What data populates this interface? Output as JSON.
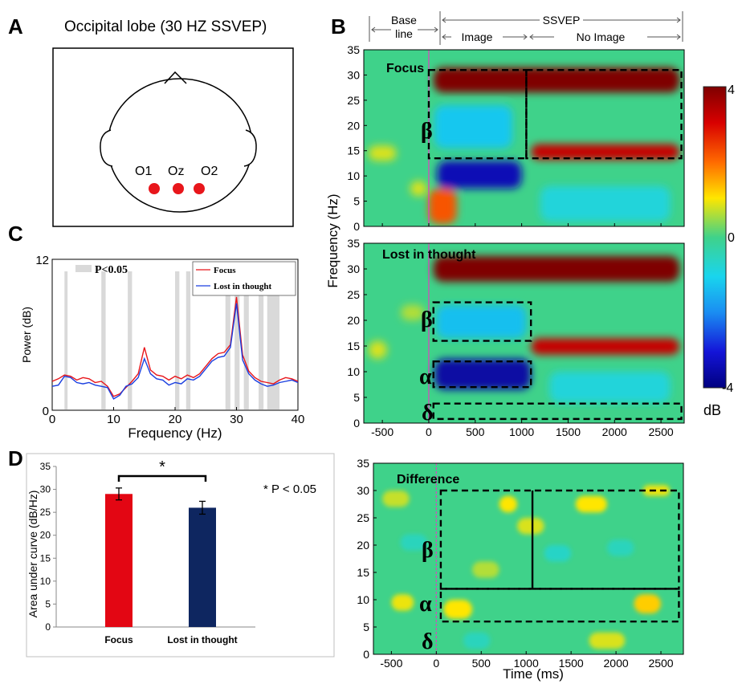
{
  "panels": {
    "A": {
      "letter": "A",
      "title": "Occipital lobe (30 HZ SSVEP)",
      "electrodes": [
        "O1",
        "Oz",
        "O2"
      ],
      "electrode_color": "#e8161b"
    },
    "B": {
      "letter": "B",
      "header": {
        "baseline": "Base line",
        "baseline_line1": "Base",
        "baseline_line2": "line",
        "ssvep": "SSVEP",
        "image": "Image",
        "no_image": "No Image"
      },
      "ylabel": "Frequency (Hz)",
      "xlabel": "Time (ms)",
      "x_ticks": [
        -500,
        0,
        500,
        1000,
        1500,
        2000,
        2500
      ],
      "y_ticks": [
        0,
        5,
        10,
        15,
        20,
        25,
        30,
        35
      ],
      "xlim": [
        -700,
        2750
      ],
      "ylim": [
        0,
        35
      ],
      "subplots": [
        {
          "label": "Focus",
          "bands": [
            "β"
          ]
        },
        {
          "label": "Lost in thought",
          "bands": [
            "β",
            "α",
            "δ"
          ]
        },
        {
          "label": "Difference",
          "bands": [
            "β",
            "α",
            "δ"
          ]
        }
      ],
      "colorbar": {
        "max": "4",
        "mid": "0",
        "min": "-4",
        "unit": "dB",
        "range": [
          -4,
          4
        ]
      }
    },
    "C": {
      "letter": "C",
      "legend_sig": "P<0.05",
      "sig_color": "#d9d9d9"
    },
    "D": {
      "letter": "D",
      "sig_note": "* P < 0.05",
      "sig_star": "*"
    }
  },
  "chart_data": [
    {
      "id": "C",
      "type": "line",
      "xlabel": "Frequency (Hz)",
      "ylabel": "Power (dB)",
      "xlim": [
        0,
        40
      ],
      "ylim": [
        0,
        12
      ],
      "x_ticks": [
        0,
        10,
        20,
        30,
        40
      ],
      "y_ticks": [
        0,
        12
      ],
      "significant_regions_hz": [
        [
          2,
          2.5
        ],
        [
          8,
          8.7
        ],
        [
          12.3,
          13
        ],
        [
          20,
          20.7
        ],
        [
          21.8,
          22.5
        ],
        [
          28.2,
          29
        ],
        [
          29.7,
          30.5
        ],
        [
          31.2,
          32
        ],
        [
          33.6,
          34.4
        ],
        [
          35,
          37
        ]
      ],
      "series": [
        {
          "name": "Focus",
          "color": "#e8161b",
          "x": [
            0,
            1,
            2,
            3,
            4,
            5,
            6,
            7,
            8,
            9,
            10,
            11,
            12,
            13,
            14,
            15,
            16,
            17,
            18,
            19,
            20,
            21,
            22,
            23,
            24,
            25,
            26,
            27,
            28,
            29,
            30,
            31,
            32,
            33,
            34,
            35,
            36,
            37,
            38,
            39,
            40
          ],
          "values": [
            2.3,
            2.5,
            2.8,
            2.7,
            2.4,
            2.6,
            2.5,
            2.2,
            2.3,
            1.9,
            1.1,
            1.3,
            1.8,
            2.3,
            2.9,
            5.0,
            3.2,
            2.8,
            2.7,
            2.4,
            2.7,
            2.5,
            2.8,
            2.6,
            2.9,
            3.5,
            4.1,
            4.5,
            4.6,
            5.2,
            9.0,
            4.4,
            3.1,
            2.6,
            2.3,
            2.2,
            2.1,
            2.4,
            2.6,
            2.5,
            2.3
          ]
        },
        {
          "name": "Lost in thought",
          "color": "#1a3fe0",
          "x": [
            0,
            1,
            2,
            3,
            4,
            5,
            6,
            7,
            8,
            9,
            10,
            11,
            12,
            13,
            14,
            15,
            16,
            17,
            18,
            19,
            20,
            21,
            22,
            23,
            24,
            25,
            26,
            27,
            28,
            29,
            30,
            31,
            32,
            33,
            34,
            35,
            36,
            37,
            38,
            39,
            40
          ],
          "values": [
            1.9,
            2.0,
            2.7,
            2.6,
            2.2,
            2.1,
            2.2,
            2.0,
            1.9,
            1.8,
            0.9,
            1.2,
            1.9,
            2.1,
            2.6,
            4.1,
            2.9,
            2.5,
            2.4,
            2.0,
            2.2,
            2.1,
            2.5,
            2.4,
            2.7,
            3.3,
            3.9,
            4.2,
            4.3,
            5.0,
            8.5,
            4.0,
            2.9,
            2.4,
            2.1,
            1.9,
            2.0,
            2.2,
            2.3,
            2.4,
            2.2
          ]
        }
      ]
    },
    {
      "id": "D",
      "type": "bar",
      "ylabel": "Area under curve (dB/Hz)",
      "categories": [
        "Focus",
        "Lost in thought"
      ],
      "values": [
        29,
        26
      ],
      "errors": [
        1.3,
        1.4
      ],
      "colors": [
        "#e30613",
        "#0e2660"
      ],
      "ylim": [
        0,
        35
      ],
      "y_ticks": [
        0,
        5,
        10,
        15,
        20,
        25,
        30,
        35
      ]
    }
  ]
}
